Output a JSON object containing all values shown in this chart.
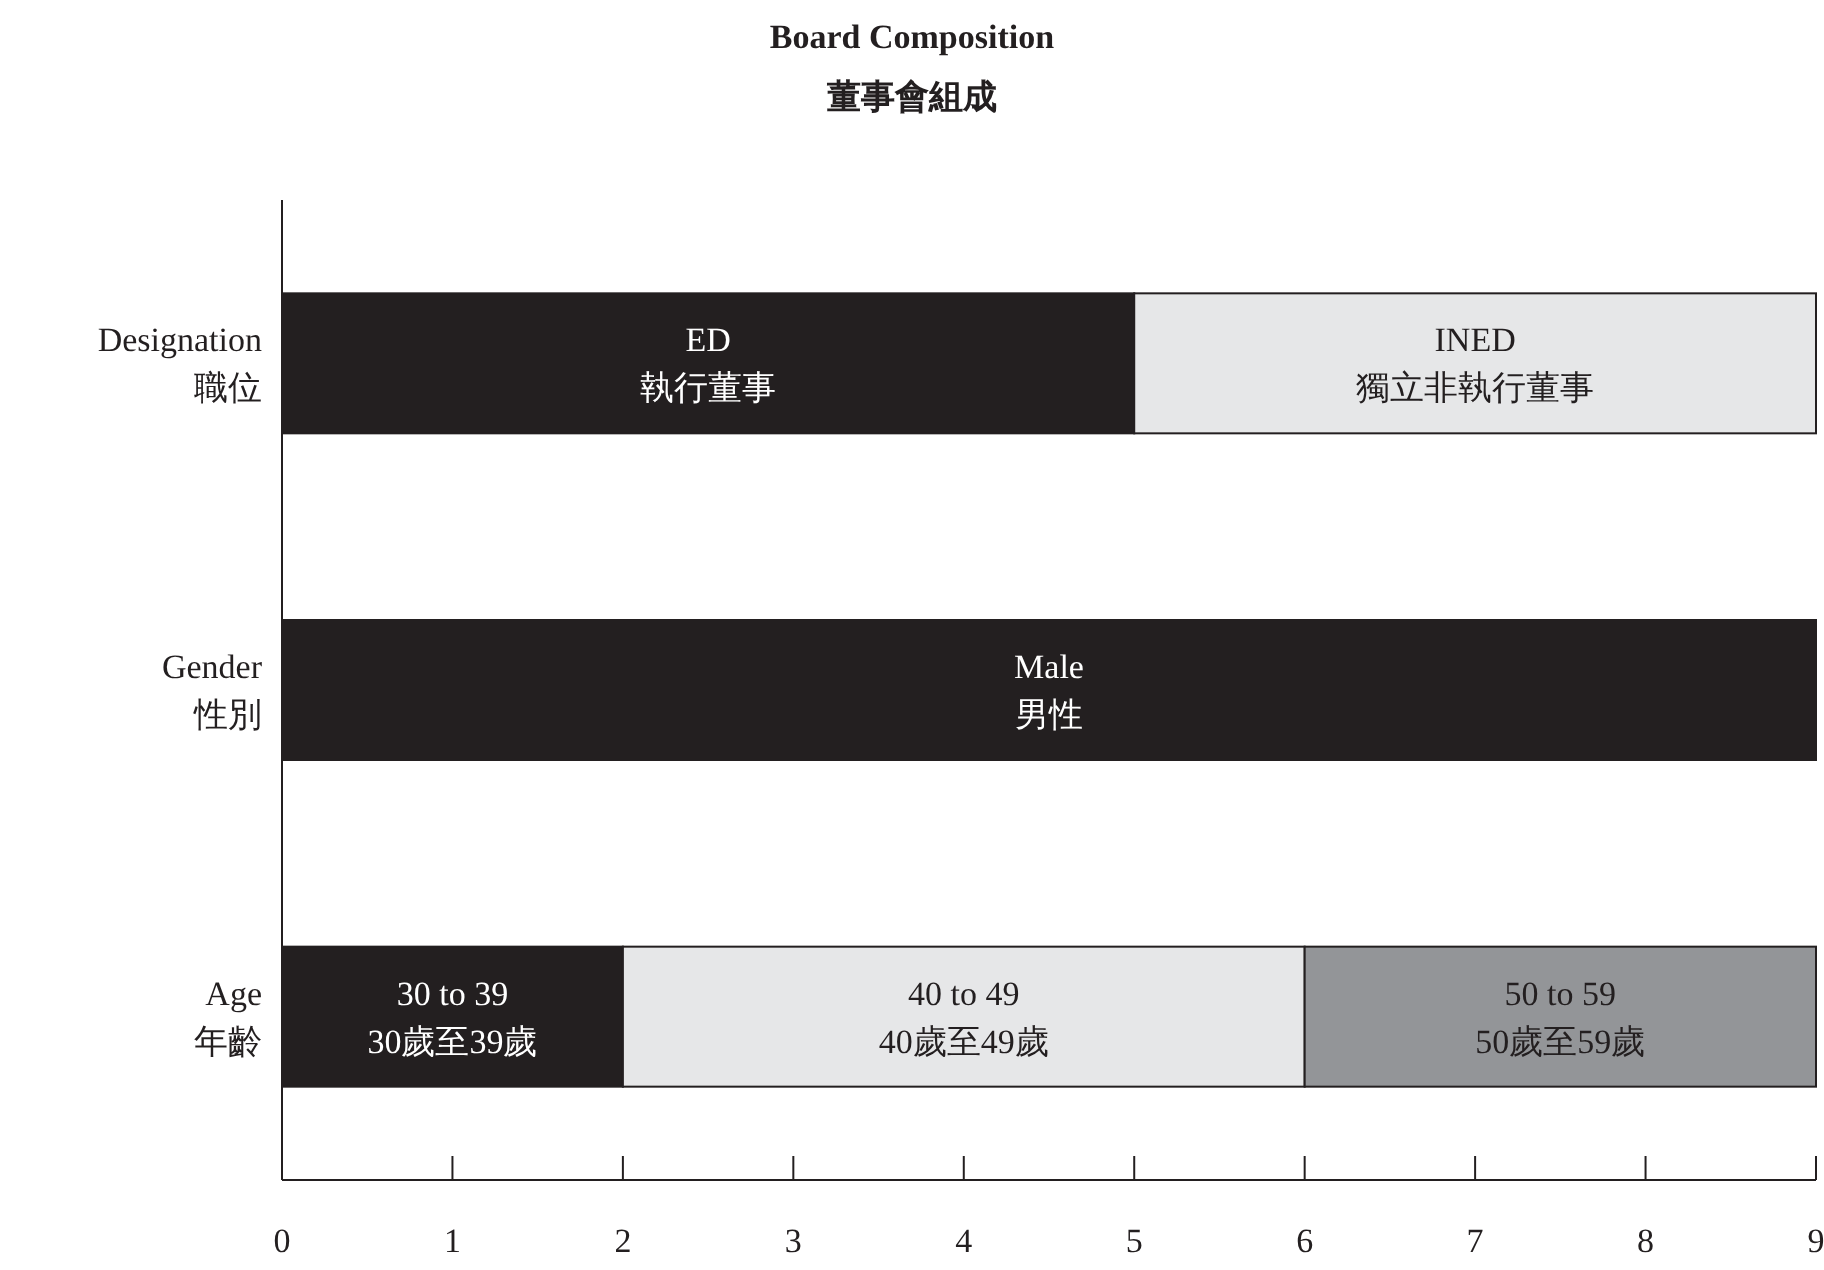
{
  "chart_data": {
    "type": "bar",
    "orientation": "horizontal",
    "stacked": true,
    "title": "Board Composition",
    "subtitle": "董事會組成",
    "categories": [
      "Designation\n職位",
      "Gender\n性別",
      "Age\n年齡"
    ],
    "series": [
      {
        "name": "ED\n執行董事",
        "color": "#231f20",
        "values": [
          5,
          null,
          null
        ]
      },
      {
        "name": "INED\n獨立非執行董事",
        "color": "#e6e7e8",
        "values": [
          4,
          null,
          null
        ]
      },
      {
        "name": "Male\n男性",
        "color": "#231f20",
        "values": [
          null,
          9,
          null
        ]
      },
      {
        "name": "30 to 39\n30歲至39歲",
        "color": "#231f20",
        "values": [
          null,
          null,
          2
        ]
      },
      {
        "name": "40 to 49\n40歲至49歲",
        "color": "#e6e7e8",
        "values": [
          null,
          null,
          4
        ]
      },
      {
        "name": "50 to 59\n50歲至59歲",
        "color": "#939598",
        "values": [
          null,
          null,
          3
        ]
      }
    ],
    "xlim": [
      0,
      9
    ],
    "xticks": [
      0,
      1,
      2,
      3,
      4,
      5,
      6,
      7,
      8,
      9
    ],
    "grid": false
  }
}
